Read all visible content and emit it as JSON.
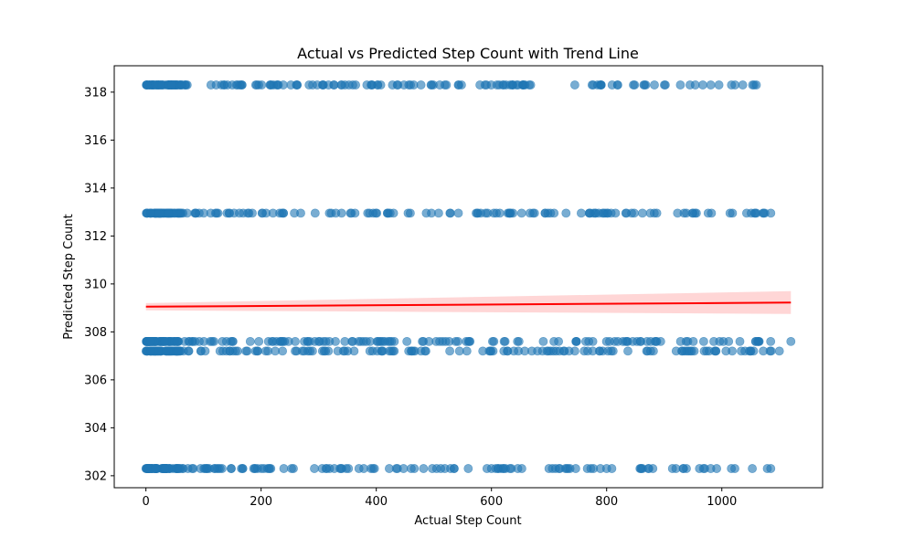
{
  "chart_data": {
    "type": "scatter",
    "title": "Actual vs Predicted Step Count with Trend Line",
    "xlabel": "Actual Step Count",
    "ylabel": "Predicted Step Count",
    "xlim": [
      -55,
      1175
    ],
    "ylim": [
      301.5,
      319.1
    ],
    "xticks": [
      0,
      200,
      400,
      600,
      800,
      1000
    ],
    "yticks": [
      302,
      304,
      306,
      308,
      310,
      312,
      314,
      316,
      318
    ],
    "grid": false,
    "legend": "none",
    "colors": {
      "points": "#1f77b4",
      "trend": "#ff0000",
      "band": "#ff9999"
    },
    "series": [
      {
        "y": 318.3,
        "x_range": [
          0,
          1060
        ]
      },
      {
        "y": 312.95,
        "x_range": [
          0,
          1085
        ]
      },
      {
        "y": 307.6,
        "x_range": [
          0,
          1120
        ]
      },
      {
        "y": 307.2,
        "x_range": [
          0,
          1100
        ]
      },
      {
        "y": 302.3,
        "x_range": [
          0,
          1085
        ]
      }
    ],
    "trend_line": {
      "x": [
        0,
        1120
      ],
      "y": [
        309.05,
        309.22
      ]
    },
    "confidence_band": {
      "x": [
        0,
        1120
      ],
      "lower": [
        308.9,
        308.75
      ],
      "upper": [
        309.2,
        309.7
      ]
    }
  }
}
